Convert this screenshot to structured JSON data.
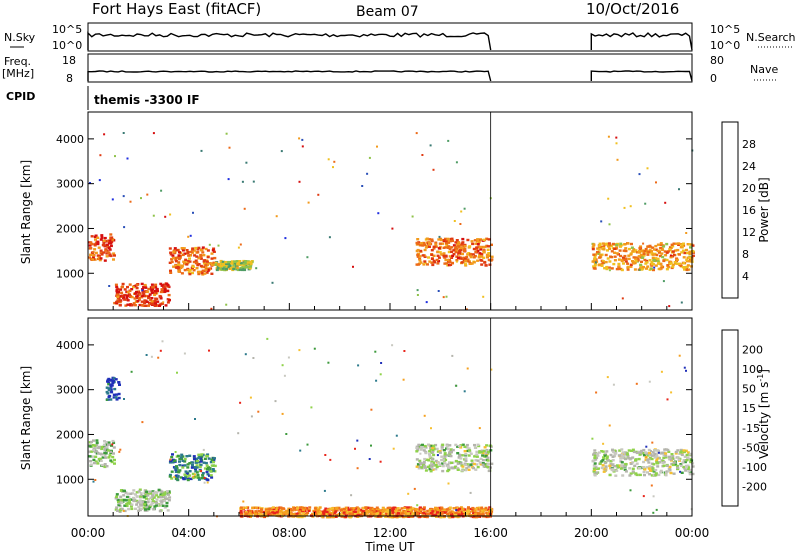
{
  "header": {
    "title": "Fort Hays East (fitACF)",
    "beam": "Beam 07",
    "date": "10/Oct/2016",
    "cpid": "themis -3300 IF"
  },
  "labels": {
    "nsky": "N.Sky",
    "nsearch": "N.Search",
    "freq_line1": "Freq.",
    "freq_line2": "[MHz]",
    "nave": "Nave",
    "cpid": "CPID"
  },
  "colors": {
    "power_scale": [
      "#1f2ee0",
      "#2a4fb8",
      "#3a7a73",
      "#4f9c65",
      "#8fc24a",
      "#f0c020",
      "#f29a1c",
      "#ec6a17",
      "#e03a12",
      "#d60f0f"
    ],
    "velocity_scale": [
      "#e8251b",
      "#f0731c",
      "#f5a11f",
      "#f6c030",
      "#c8c8c0",
      "#b4b4ac",
      "#8fd24a",
      "#3c9a3c",
      "#2c7a8c",
      "#2030b8"
    ]
  },
  "chart_data": [
    {
      "type": "line",
      "name": "nsky-nsearch",
      "y_ticks_left": [
        "10^5",
        "10^0"
      ],
      "y_ticks_right": [
        "10^5",
        "10^0"
      ],
      "gaps": [
        [
          16,
          20
        ]
      ]
    },
    {
      "type": "line",
      "name": "freq-nave",
      "y_ticks_left": [
        "18",
        "8"
      ],
      "y_ticks_right": [
        "80",
        "0"
      ],
      "gaps": [
        [
          16,
          20
        ]
      ]
    },
    {
      "type": "heatmap",
      "name": "power",
      "ylabel": "Slant Range [km]",
      "xlabel": "Time UT",
      "x_ticks": [
        "00:00",
        "04:00",
        "08:00",
        "12:00",
        "16:00",
        "20:00",
        "00:00"
      ],
      "xlim": [
        0,
        24
      ],
      "ylim": [
        180,
        4600
      ],
      "y_ticks": [
        1000,
        2000,
        3000,
        4000
      ],
      "colorbar_label": "Power [dB]",
      "colorbar_ticks": [
        "4",
        "8",
        "12",
        "16",
        "20",
        "24",
        "28"
      ],
      "clim": [
        0,
        30
      ],
      "clusters": [
        {
          "t": [
            0.0,
            1.0
          ],
          "r": [
            1300,
            1900
          ],
          "level": 0.8
        },
        {
          "t": [
            1.0,
            3.2
          ],
          "r": [
            300,
            800
          ],
          "level": 0.85
        },
        {
          "t": [
            3.2,
            5.0
          ],
          "r": [
            1000,
            1600
          ],
          "level": 0.75
        },
        {
          "t": [
            5.0,
            6.5
          ],
          "r": [
            1100,
            1300
          ],
          "level": 0.45
        },
        {
          "t": [
            13.0,
            16.0
          ],
          "r": [
            1200,
            1800
          ],
          "level": 0.75
        },
        {
          "t": [
            20.0,
            24.0
          ],
          "r": [
            1100,
            1700
          ],
          "level": 0.65
        }
      ]
    },
    {
      "type": "heatmap",
      "name": "velocity",
      "ylabel": "Slant Range [km]",
      "xlabel": "Time UT",
      "x_ticks": [
        "00:00",
        "04:00",
        "08:00",
        "12:00",
        "16:00",
        "20:00",
        "00:00"
      ],
      "xlim": [
        0,
        24
      ],
      "ylim": [
        180,
        4600
      ],
      "y_ticks": [
        1000,
        2000,
        3000,
        4000
      ],
      "colorbar_label_main": "Velocity [m s",
      "colorbar_label_sup": "-1",
      "colorbar_label_end": "]",
      "colorbar_ticks": [
        "200",
        "100",
        "50",
        "15",
        "-15",
        "-50",
        "-100",
        "-200"
      ],
      "clusters": [
        {
          "t": [
            0.0,
            1.0
          ],
          "r": [
            1300,
            1900
          ],
          "level": 0.6
        },
        {
          "t": [
            0.7,
            1.2
          ],
          "r": [
            2800,
            3300
          ],
          "level": 0.95
        },
        {
          "t": [
            1.0,
            3.2
          ],
          "r": [
            300,
            800
          ],
          "level": 0.6
        },
        {
          "t": [
            3.2,
            5.0
          ],
          "r": [
            1000,
            1600
          ],
          "level": 0.8
        },
        {
          "t": [
            6.0,
            16.0
          ],
          "r": [
            180,
            400
          ],
          "level": 0.2
        },
        {
          "t": [
            13.0,
            16.0
          ],
          "r": [
            1200,
            1800
          ],
          "level": 0.55
        },
        {
          "t": [
            20.0,
            24.0
          ],
          "r": [
            1100,
            1700
          ],
          "level": 0.55
        }
      ]
    }
  ]
}
